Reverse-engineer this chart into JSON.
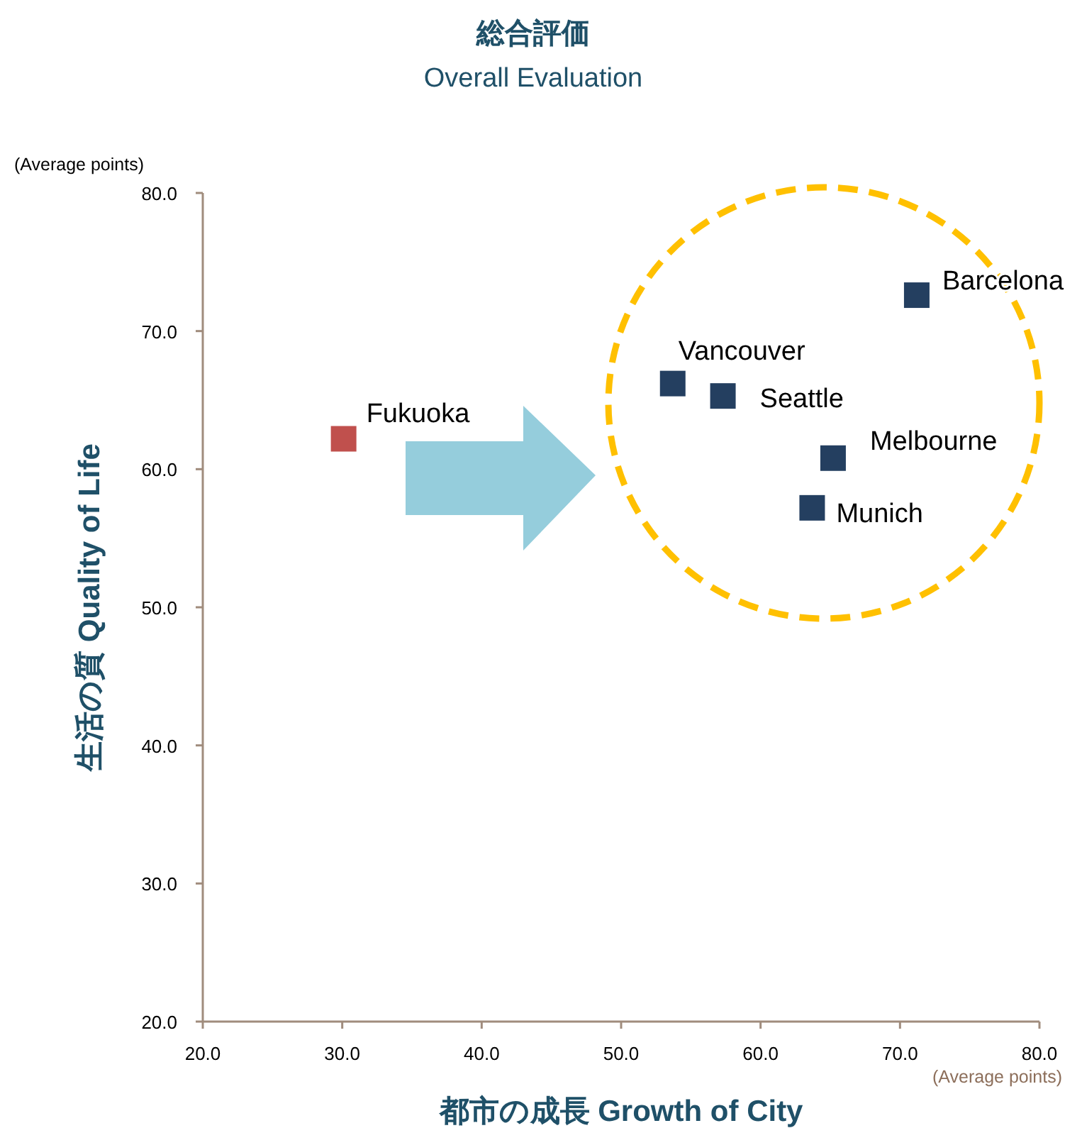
{
  "chart_data": {
    "type": "scatter",
    "title": "総合評価",
    "subtitle": "Overall Evaluation",
    "xlabel": "都市の成長 Growth of City",
    "ylabel": "生活の質 Quality of Life",
    "annotations": [
      "(Average points)",
      "(Average points)"
    ],
    "series": [
      {
        "name": "Fukuoka",
        "color": "#c0504d",
        "x": [
          30.1
        ],
        "values": [
          62.2
        ]
      },
      {
        "name": "Vancouver",
        "color": "#243f60",
        "x": [
          53.7
        ],
        "values": [
          66.2
        ]
      },
      {
        "name": "Seattle",
        "color": "#243f60",
        "x": [
          57.3
        ],
        "values": [
          65.3
        ]
      },
      {
        "name": "Barcelona",
        "color": "#243f60",
        "x": [
          71.2
        ],
        "values": [
          72.6
        ]
      },
      {
        "name": "Melbourne",
        "color": "#243f60",
        "x": [
          65.2
        ],
        "values": [
          60.8
        ]
      },
      {
        "name": "Munich",
        "color": "#243f60",
        "x": [
          63.7
        ],
        "values": [
          57.2
        ]
      }
    ],
    "xlim": [
      20,
      80
    ],
    "ylim": [
      20,
      80
    ],
    "xticks": [
      {
        "value": 20,
        "label": "20.0"
      },
      {
        "value": 30,
        "label": "30.0"
      },
      {
        "value": 40,
        "label": "40.0"
      },
      {
        "value": 50,
        "label": "50.0"
      },
      {
        "value": 60,
        "label": "60.0"
      },
      {
        "value": 70,
        "label": "70.0"
      },
      {
        "value": 80,
        "label": "80.0"
      }
    ],
    "yticks": [
      {
        "value": 20,
        "label": "20.0"
      },
      {
        "value": 30,
        "label": "30.0"
      },
      {
        "value": 40,
        "label": "40.0"
      },
      {
        "value": 50,
        "label": "50.0"
      },
      {
        "value": 60,
        "label": "60.0"
      },
      {
        "value": 70,
        "label": "70.0"
      },
      {
        "value": 80,
        "label": "80.0"
      }
    ],
    "marker": "square",
    "grid": false,
    "legend": false
  }
}
